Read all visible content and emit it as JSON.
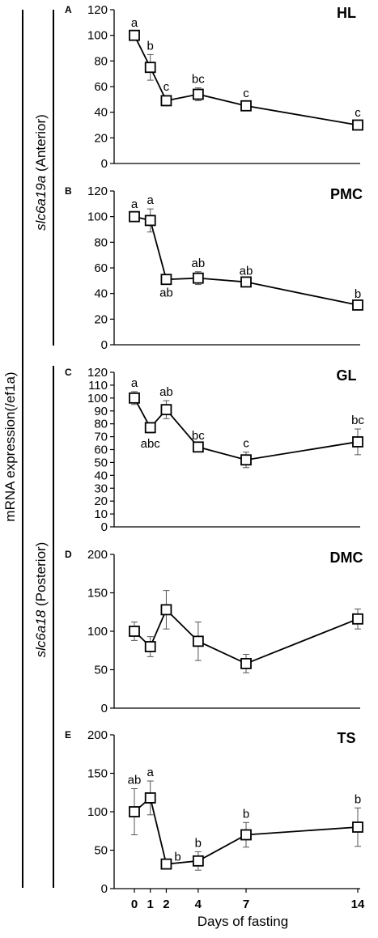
{
  "figure": {
    "y_axis_label": "mRNA expression(/ef1a)",
    "x_axis_label": "Days of fasting",
    "group_labels": {
      "anterior_gene": "slc6a19a",
      "anterior_region": "(Anterior)",
      "posterior_gene": "slc6a18",
      "posterior_region": "(Posterior)"
    }
  },
  "chart_data": [
    {
      "type": "line",
      "panel": "A",
      "title": "HL",
      "x": [
        0,
        1,
        2,
        4,
        7,
        14
      ],
      "y": [
        100,
        75,
        49,
        54,
        45,
        30
      ],
      "error": [
        3,
        10,
        4,
        5,
        3,
        3
      ],
      "sig_labels": [
        "a",
        "b",
        "c",
        "bc",
        "c",
        "c"
      ],
      "sig_position": [
        "above",
        "above",
        "above",
        "above",
        "above",
        "above"
      ],
      "yticks": [
        0,
        20,
        40,
        60,
        80,
        100,
        120
      ],
      "ylim": [
        0,
        120
      ]
    },
    {
      "type": "line",
      "panel": "B",
      "title": "PMC",
      "x": [
        0,
        1,
        2,
        4,
        7,
        14
      ],
      "y": [
        100,
        97,
        51,
        52,
        49,
        31
      ],
      "error": [
        3,
        9,
        2,
        5,
        2,
        2
      ],
      "sig_labels": [
        "a",
        "a",
        "ab",
        "ab",
        "ab",
        "b"
      ],
      "sig_position": [
        "above",
        "above",
        "below",
        "above",
        "above",
        "above"
      ],
      "yticks": [
        0,
        20,
        40,
        60,
        80,
        100,
        120
      ],
      "ylim": [
        0,
        120
      ]
    },
    {
      "type": "line",
      "panel": "C",
      "title": "GL",
      "x": [
        0,
        1,
        2,
        4,
        7,
        14
      ],
      "y": [
        100,
        77,
        91,
        62,
        52,
        66
      ],
      "error": [
        5,
        4,
        7,
        2,
        6,
        10
      ],
      "sig_labels": [
        "a",
        "abc",
        "ab",
        "bc",
        "c",
        "bc"
      ],
      "sig_position": [
        "above",
        "below",
        "above",
        "above",
        "above",
        "above"
      ],
      "yticks": [
        0,
        10,
        20,
        30,
        40,
        50,
        60,
        70,
        80,
        90,
        100,
        110,
        120
      ],
      "ylim": [
        0,
        120
      ]
    },
    {
      "type": "line",
      "panel": "D",
      "title": "DMC",
      "x": [
        0,
        1,
        2,
        4,
        7,
        14
      ],
      "y": [
        100,
        80,
        128,
        87,
        58,
        116
      ],
      "error": [
        12,
        13,
        25,
        25,
        12,
        13
      ],
      "sig_labels": [],
      "sig_position": [],
      "yticks": [
        0,
        50,
        100,
        150,
        200
      ],
      "ylim": [
        0,
        200
      ]
    },
    {
      "type": "line",
      "panel": "E",
      "title": "TS",
      "x": [
        0,
        1,
        2,
        4,
        7,
        14
      ],
      "y": [
        100,
        118,
        32,
        36,
        70,
        80
      ],
      "error": [
        30,
        22,
        5,
        12,
        16,
        25
      ],
      "sig_labels": [
        "ab",
        "a",
        "b",
        "b",
        "b",
        "b"
      ],
      "sig_position": [
        "above",
        "above",
        "right",
        "above",
        "above",
        "above"
      ],
      "yticks": [
        0,
        50,
        100,
        150,
        200
      ],
      "ylim": [
        0,
        200
      ],
      "xticks": [
        0,
        1,
        2,
        4,
        7,
        14
      ]
    }
  ]
}
